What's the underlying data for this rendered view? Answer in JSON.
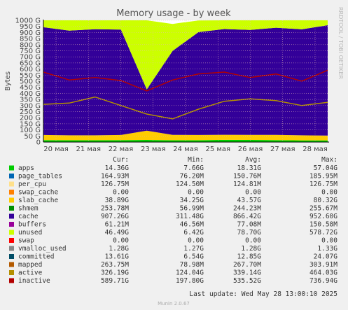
{
  "chart_data": {
    "type": "area",
    "title": "Memory usage - by week",
    "ylabel": "Bytes",
    "ylim": [
      0,
      1000
    ],
    "yunit": "G",
    "y_ticks": [
      "0",
      "50 G",
      "100 G",
      "150 G",
      "200 G",
      "250 G",
      "300 G",
      "350 G",
      "400 G",
      "450 G",
      "500 G",
      "550 G",
      "600 G",
      "650 G",
      "700 G",
      "750 G",
      "800 G",
      "850 G",
      "900 G",
      "950 G",
      "1000 G"
    ],
    "x_ticks": [
      "20 мая",
      "21 мая",
      "22 мая",
      "23 мая",
      "24 мая",
      "25 мая",
      "26 мая",
      "27 мая",
      "28 мая"
    ],
    "grid": true,
    "side_label": "RRDTOOL / TOBI OETIKER",
    "columns": [
      "Cur:",
      "Min:",
      "Avg:",
      "Max:"
    ],
    "colors": {
      "apps": "#00cc00",
      "page_tables": "#0066b3",
      "per_cpu": "#ffe08a",
      "swap_cache": "#ff8000",
      "slab_cache": "#ffcc00",
      "shmem": "#008f00",
      "cache": "#330099",
      "buffers": "#990099",
      "unused": "#ccff00",
      "swap": "#ff0000",
      "vmalloc_used": "#888888",
      "committed": "#004d66",
      "mapped": "#b35a00",
      "active": "#b38f00",
      "inactive": "#b30000",
      "background": "#f0f0f0",
      "plot": "#ffffff",
      "grid": "#e6b8b8"
    },
    "series": [
      {
        "name": "apps",
        "cur": "14.36G",
        "min": "7.66G",
        "avg": "18.31G",
        "max": "57.04G",
        "values": [
          16,
          15,
          15,
          16,
          17,
          15,
          15,
          18,
          17,
          16,
          14,
          14
        ]
      },
      {
        "name": "page_tables",
        "cur": "164.93M",
        "min": "76.20M",
        "avg": "150.76M",
        "max": "185.95M"
      },
      {
        "name": "per_cpu",
        "cur": "126.75M",
        "min": "124.50M",
        "avg": "124.81M",
        "max": "126.75M"
      },
      {
        "name": "swap_cache",
        "cur": "0.00",
        "min": "0.00",
        "avg": "0.00",
        "max": "0.00"
      },
      {
        "name": "slab_cache",
        "cur": "38.89G",
        "min": "34.25G",
        "avg": "43.57G",
        "max": "80.32G",
        "values": [
          42,
          40,
          40,
          42,
          76,
          44,
          43,
          42,
          42,
          43,
          41,
          39
        ]
      },
      {
        "name": "shmem",
        "cur": "253.78M",
        "min": "56.99M",
        "avg": "244.23M",
        "max": "255.67M"
      },
      {
        "name": "cache",
        "cur": "907.26G",
        "min": "311.48G",
        "avg": "866.42G",
        "max": "952.60G",
        "values": [
          885,
          860,
          872,
          866,
          340,
          690,
          845,
          868,
          862,
          880,
          871,
          907
        ]
      },
      {
        "name": "buffers",
        "cur": "61.21M",
        "min": "46.56M",
        "avg": "77.08M",
        "max": "150.58M"
      },
      {
        "name": "unused",
        "cur": "46.49G",
        "avg": "78.70G",
        "min": "6.42G",
        "max": "578.72G",
        "values": [
          57,
          85,
          73,
          76,
          567,
          221,
          96,
          72,
          79,
          61,
          74,
          40
        ]
      },
      {
        "name": "swap",
        "cur": "0.00",
        "min": "0.00",
        "avg": "0.00",
        "max": "0.00"
      },
      {
        "name": "vmalloc_used",
        "cur": "1.28G",
        "min": "1.27G",
        "avg": "1.28G",
        "max": "1.33G"
      },
      {
        "name": "committed",
        "cur": "13.61G",
        "min": "6.54G",
        "avg": "12.85G",
        "max": "24.07G"
      },
      {
        "name": "mapped",
        "cur": "263.75M",
        "min": "78.98M",
        "avg": "267.70M",
        "max": "303.91M"
      },
      {
        "name": "active",
        "cur": "326.19G",
        "min": "124.04G",
        "avg": "339.14G",
        "max": "464.03G",
        "values": [
          310,
          320,
          370,
          300,
          230,
          190,
          270,
          335,
          355,
          340,
          300,
          326
        ]
      },
      {
        "name": "inactive",
        "cur": "589.71G",
        "min": "197.80G",
        "avg": "535.52G",
        "max": "736.94G",
        "values": [
          575,
          510,
          530,
          505,
          420,
          510,
          560,
          575,
          530,
          560,
          500,
          590
        ]
      }
    ],
    "last_update": "Last update: Wed May 28 13:00:10 2025",
    "footer": "Munin 2.0.67"
  }
}
